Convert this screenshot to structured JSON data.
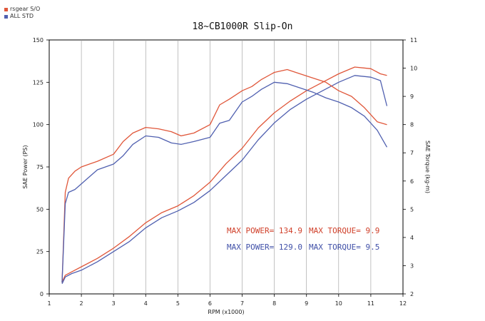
{
  "title": "18~CB1000R Slip-On",
  "legend": [
    {
      "name": "rsgear S/O",
      "color": "#e0573a"
    },
    {
      "name": "ALL STD",
      "color": "#5060b0"
    }
  ],
  "annotations": {
    "rsgear_power": "MAX POWER= 134.9",
    "rsgear_torque": "MAX TORQUE= 9.9",
    "std_power": "MAX POWER= 129.0",
    "std_torque": "MAX TORQUE= 9.5"
  },
  "chart_data": {
    "type": "line",
    "xlabel": "RPM (x1000)",
    "ylabel": "SAE Power (PS)",
    "y2label": "SAE Torque (kg-m)",
    "xlim": [
      1,
      12
    ],
    "ylim": [
      0,
      150
    ],
    "y2lim": [
      2,
      11
    ],
    "xticks": [
      "1",
      "2",
      "3",
      "4",
      "5",
      "6",
      "7",
      "8",
      "9",
      "10",
      "11",
      "12"
    ],
    "yticks": [
      "0",
      "25",
      "50",
      "75",
      "100",
      "125",
      "150"
    ],
    "y2ticks": [
      "2",
      "3",
      "4",
      "5",
      "6",
      "7",
      "8",
      "9",
      "10",
      "11"
    ],
    "grid": "vertical",
    "series": [
      {
        "name": "rsgear S/O",
        "axis": "power",
        "color": "#e0573a",
        "x": [
          1.4,
          1.5,
          1.7,
          2,
          2.5,
          3,
          3.5,
          4,
          4.5,
          5,
          5.5,
          6,
          6.5,
          7,
          7.5,
          8,
          8.5,
          9,
          9.5,
          10,
          10.5,
          11,
          11.3,
          11.5
        ],
        "y": [
          7,
          11,
          13,
          16,
          21,
          27,
          34,
          42,
          48,
          52,
          58,
          66,
          77,
          86,
          98,
          107,
          114,
          120,
          125,
          130,
          134,
          133,
          130,
          129
        ]
      },
      {
        "name": "ALL STD",
        "axis": "power",
        "color": "#5060b0",
        "x": [
          1.4,
          1.5,
          1.7,
          2,
          2.5,
          3,
          3.5,
          4,
          4.5,
          5,
          5.5,
          6,
          6.5,
          7,
          7.5,
          8,
          8.5,
          9,
          9.5,
          10,
          10.5,
          11,
          11.3,
          11.5
        ],
        "y": [
          6,
          10,
          12,
          14,
          19,
          25,
          31,
          39,
          45,
          49,
          54,
          61,
          70,
          79,
          91,
          101,
          109,
          115,
          120,
          125,
          129,
          128,
          126,
          111
        ]
      },
      {
        "name": "rsgear S/O",
        "axis": "torque",
        "color": "#e0573a",
        "x": [
          1.4,
          1.5,
          1.6,
          1.8,
          2,
          2.5,
          3,
          3.3,
          3.6,
          4,
          4.4,
          4.8,
          5.1,
          5.5,
          6,
          6.3,
          6.6,
          7,
          7.3,
          7.6,
          8,
          8.4,
          8.8,
          9.2,
          9.6,
          10,
          10.4,
          10.8,
          11.2,
          11.5
        ],
        "y": [
          2.4,
          5.6,
          6.1,
          6.35,
          6.5,
          6.7,
          6.95,
          7.4,
          7.7,
          7.9,
          7.85,
          7.75,
          7.6,
          7.7,
          8.0,
          8.7,
          8.9,
          9.2,
          9.35,
          9.6,
          9.85,
          9.95,
          9.8,
          9.65,
          9.5,
          9.2,
          9.0,
          8.6,
          8.1,
          8.0
        ]
      },
      {
        "name": "ALL STD",
        "axis": "torque",
        "color": "#5060b0",
        "x": [
          1.4,
          1.5,
          1.6,
          1.8,
          2,
          2.5,
          3,
          3.3,
          3.6,
          4,
          4.4,
          4.8,
          5.1,
          5.5,
          6,
          6.3,
          6.6,
          7,
          7.3,
          7.6,
          8,
          8.4,
          8.8,
          9.2,
          9.6,
          10,
          10.4,
          10.8,
          11.2,
          11.5
        ],
        "y": [
          2.4,
          5.2,
          5.6,
          5.7,
          5.9,
          6.4,
          6.6,
          6.9,
          7.3,
          7.6,
          7.55,
          7.35,
          7.3,
          7.4,
          7.55,
          8.05,
          8.15,
          8.8,
          9.0,
          9.25,
          9.5,
          9.45,
          9.3,
          9.15,
          8.95,
          8.8,
          8.6,
          8.3,
          7.8,
          7.2
        ]
      }
    ]
  }
}
